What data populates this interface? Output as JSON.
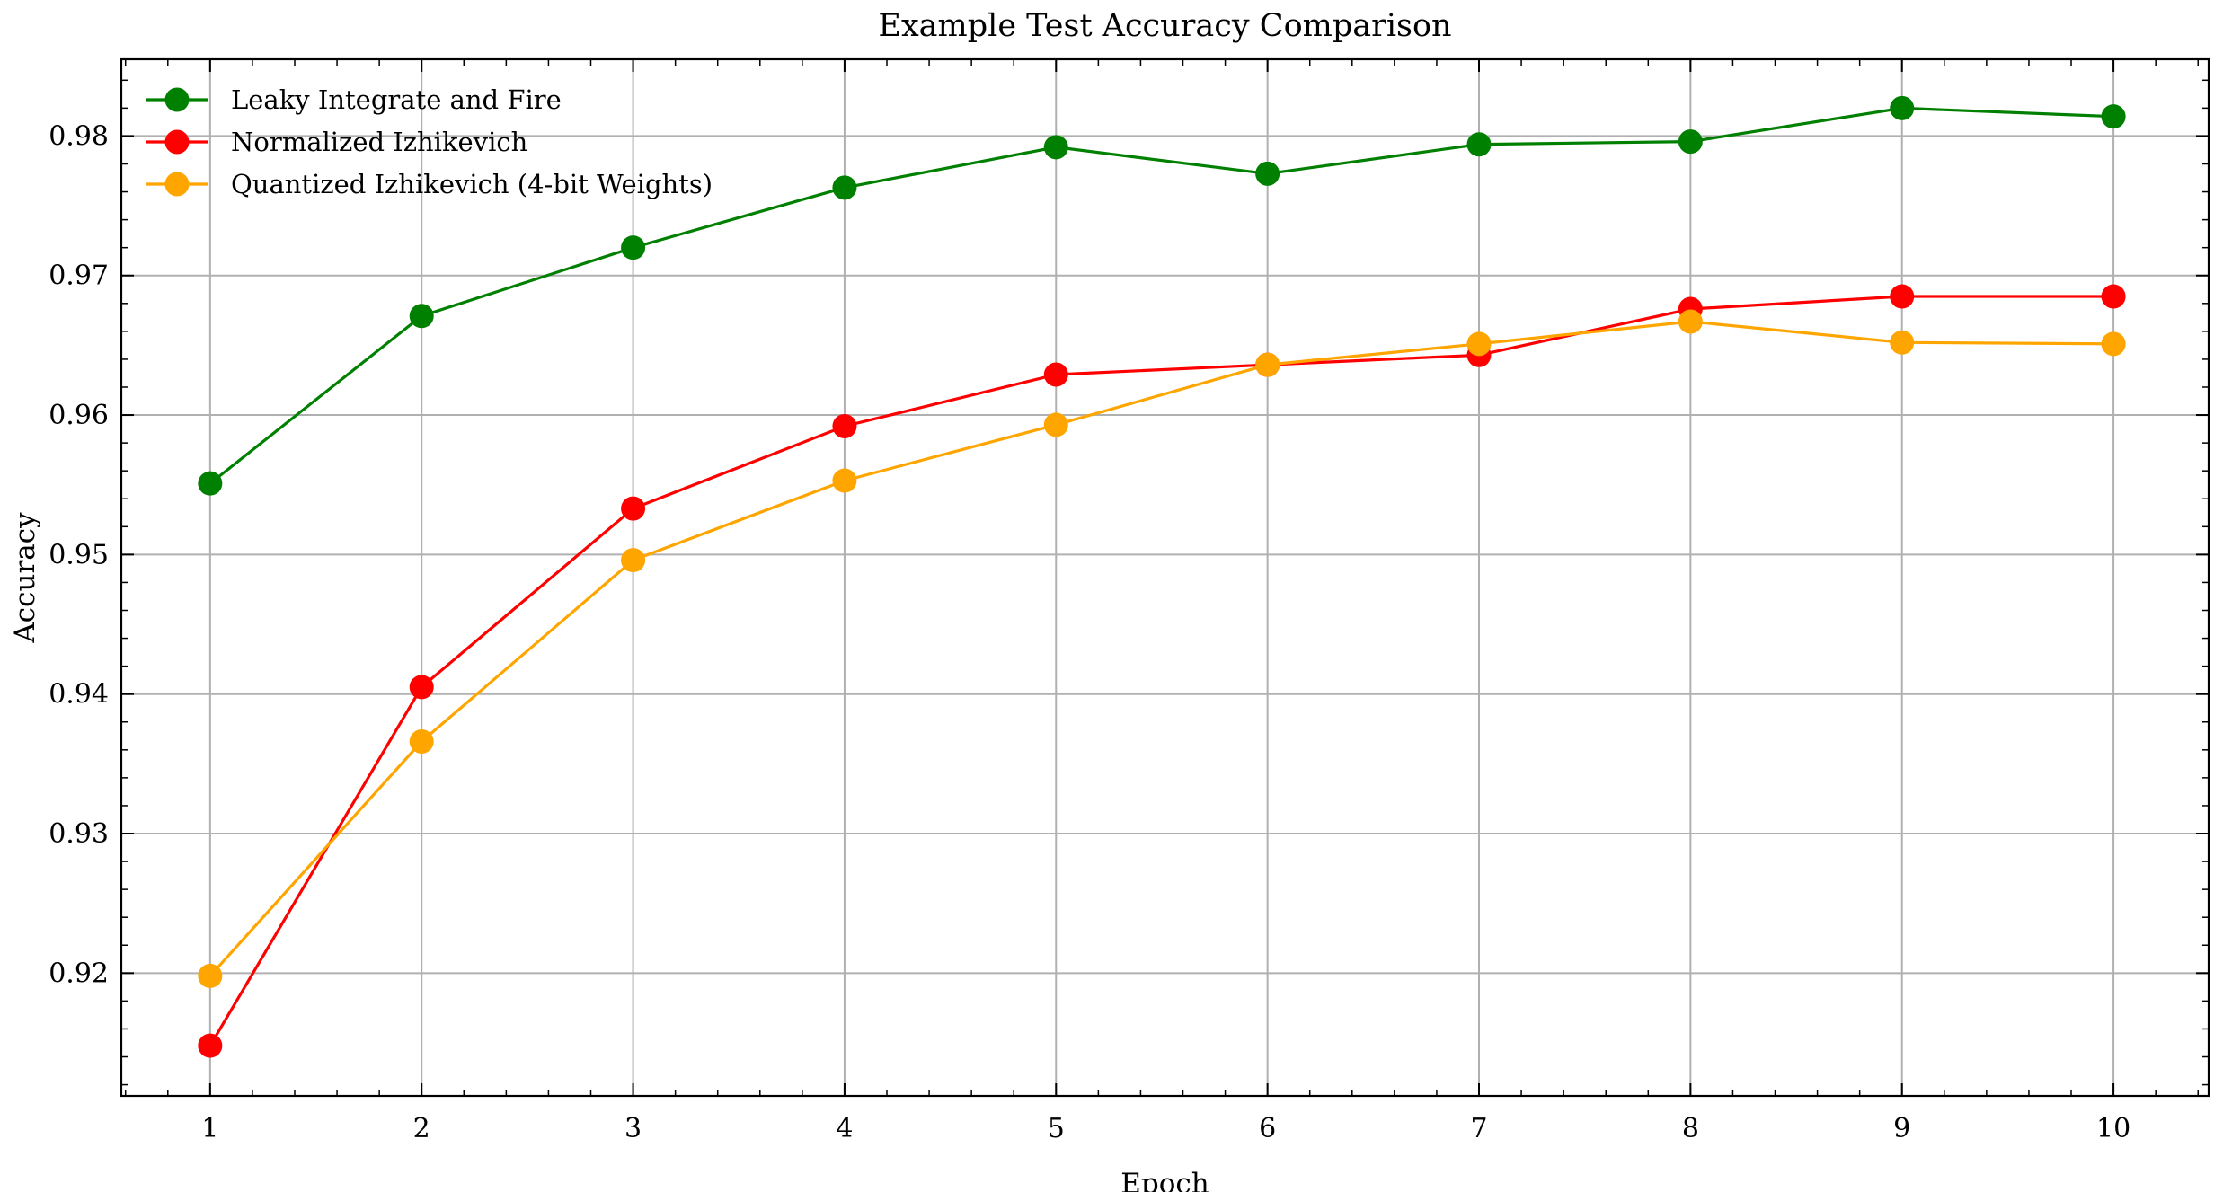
{
  "chart_data": {
    "type": "line",
    "title": "Example Test Accuracy Comparison",
    "xlabel": "Epoch",
    "ylabel": "Accuracy",
    "x": [
      1,
      2,
      3,
      4,
      5,
      6,
      7,
      8,
      9,
      10
    ],
    "x_ticks": [
      "1",
      "2",
      "3",
      "4",
      "5",
      "6",
      "7",
      "8",
      "9",
      "10"
    ],
    "y_ticks": [
      "0.92",
      "0.93",
      "0.94",
      "0.95",
      "0.96",
      "0.97",
      "0.98"
    ],
    "xlim": [
      0.58,
      10.45
    ],
    "ylim": [
      0.9112,
      0.9855
    ],
    "grid": true,
    "legend_position": "top-left",
    "series": [
      {
        "name": "Leaky Integrate and Fire",
        "color": "#008000",
        "values": [
          0.9551,
          0.9671,
          0.972,
          0.9763,
          0.9792,
          0.9773,
          0.9794,
          0.9796,
          0.982,
          0.9814
        ]
      },
      {
        "name": "Normalized Izhikevich",
        "color": "#ff0000",
        "values": [
          0.9148,
          0.9405,
          0.9533,
          0.9592,
          0.9629,
          0.9636,
          0.9643,
          0.9676,
          0.9685,
          0.9685
        ]
      },
      {
        "name": "Quantized Izhikevich (4-bit Weights)",
        "color": "#ffa500",
        "values": [
          0.9198,
          0.9366,
          0.9496,
          0.9553,
          0.9593,
          0.9636,
          0.9651,
          0.9667,
          0.9652,
          0.9651
        ]
      }
    ]
  }
}
